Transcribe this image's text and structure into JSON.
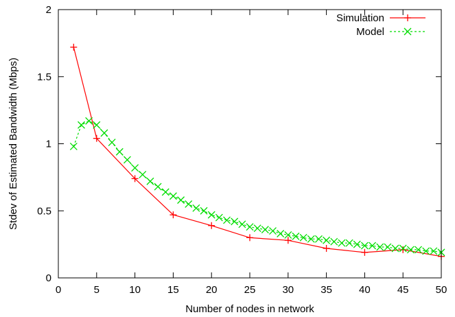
{
  "chart_data": {
    "type": "line",
    "title": "",
    "xlabel": "Number of nodes in network",
    "ylabel": "Stdev of Estimated Bandwidth (Mbps)",
    "xlim": [
      0,
      50
    ],
    "ylim": [
      0,
      2
    ],
    "x_ticks": [
      0,
      5,
      10,
      15,
      20,
      25,
      30,
      35,
      40,
      45,
      50
    ],
    "y_ticks": [
      0,
      0.5,
      1,
      1.5,
      2
    ],
    "x_tick_labels": [
      "0",
      "5",
      "10",
      "15",
      "20",
      "25",
      "30",
      "35",
      "40",
      "45",
      "50"
    ],
    "y_tick_labels": [
      "0",
      "0.5",
      "1",
      "1.5",
      "2"
    ],
    "grid": false,
    "legend_position": "top-right",
    "series": [
      {
        "name": "Simulation",
        "color": "#ff0000",
        "line_style": "solid",
        "marker": "plus",
        "x": [
          2,
          5,
          10,
          15,
          20,
          25,
          30,
          35,
          40,
          45,
          50
        ],
        "y": [
          1.72,
          1.04,
          0.74,
          0.47,
          0.39,
          0.3,
          0.28,
          0.22,
          0.19,
          0.21,
          0.16
        ]
      },
      {
        "name": "Model",
        "color": "#00dd00",
        "line_style": "dashed",
        "marker": "cross",
        "x": [
          2,
          3,
          4,
          5,
          6,
          7,
          8,
          9,
          10,
          11,
          12,
          13,
          14,
          15,
          16,
          17,
          18,
          19,
          20,
          21,
          22,
          23,
          24,
          25,
          26,
          27,
          28,
          29,
          30,
          31,
          32,
          33,
          34,
          35,
          36,
          37,
          38,
          39,
          40,
          41,
          42,
          43,
          44,
          45,
          46,
          47,
          48,
          49,
          50
        ],
        "y": [
          0.98,
          1.14,
          1.17,
          1.14,
          1.08,
          1.01,
          0.94,
          0.88,
          0.82,
          0.77,
          0.72,
          0.68,
          0.64,
          0.61,
          0.58,
          0.55,
          0.52,
          0.5,
          0.47,
          0.45,
          0.43,
          0.42,
          0.4,
          0.38,
          0.37,
          0.36,
          0.35,
          0.33,
          0.32,
          0.31,
          0.3,
          0.29,
          0.29,
          0.28,
          0.27,
          0.26,
          0.26,
          0.25,
          0.24,
          0.24,
          0.23,
          0.23,
          0.22,
          0.22,
          0.21,
          0.21,
          0.2,
          0.2,
          0.19
        ]
      }
    ]
  }
}
